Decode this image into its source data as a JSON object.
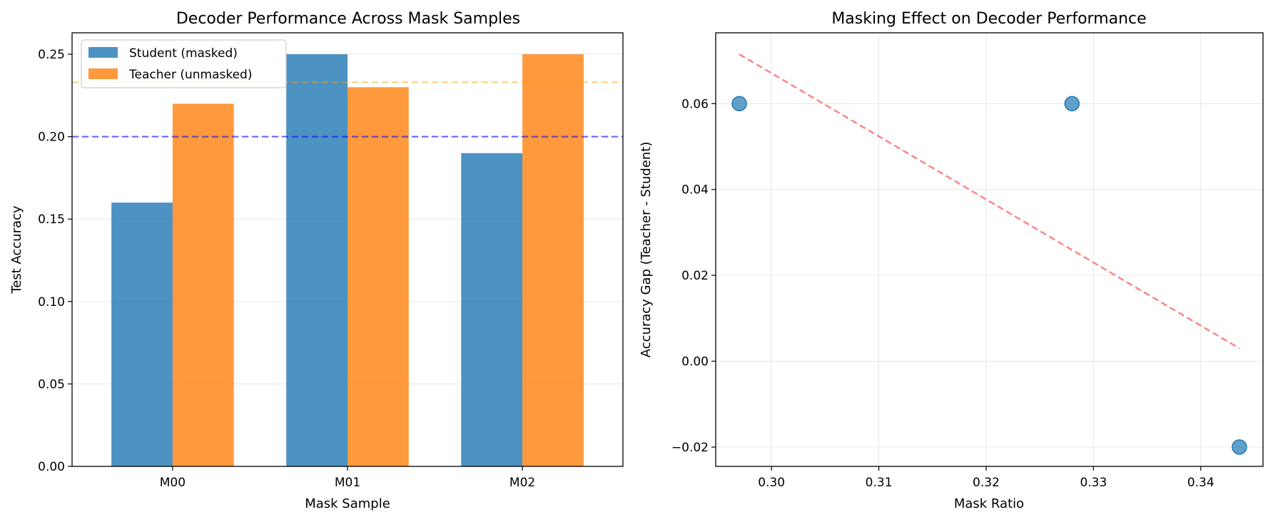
{
  "chart_data": [
    {
      "type": "bar",
      "title": "Decoder Performance Across Mask Samples",
      "xlabel": "Mask Sample",
      "ylabel": "Test Accuracy",
      "categories": [
        "M00",
        "M01",
        "M02"
      ],
      "series": [
        {
          "name": "Student (masked)",
          "values": [
            0.16,
            0.25,
            0.19
          ],
          "color": "#1f77b4"
        },
        {
          "name": "Teacher (unmasked)",
          "values": [
            0.22,
            0.23,
            0.25
          ],
          "color": "#ff7f0e"
        }
      ],
      "reference_lines": [
        {
          "y": 0.2,
          "color": "#0000ff",
          "style": "dashed"
        },
        {
          "y": 0.233,
          "color": "#ffa500",
          "style": "dashed"
        }
      ],
      "ylim": [
        0,
        0.263
      ],
      "yticks": [
        "0.00",
        "0.05",
        "0.10",
        "0.15",
        "0.20",
        "0.25"
      ],
      "ytick_values": [
        0,
        0.05,
        0.1,
        0.15,
        0.2,
        0.25
      ],
      "grid": true,
      "legend_position": "top-left"
    },
    {
      "type": "scatter",
      "title": "Masking Effect on Decoder Performance",
      "xlabel": "Mask Ratio",
      "ylabel": "Accuracy Gap (Teacher - Student)",
      "points": [
        {
          "x": 0.297,
          "y": 0.06
        },
        {
          "x": 0.328,
          "y": 0.06
        },
        {
          "x": 0.3436,
          "y": -0.02
        }
      ],
      "point_color": "#1f77b4",
      "trend_line": {
        "x": [
          0.297,
          0.3436
        ],
        "y": [
          0.0715,
          0.003
        ],
        "color": "#ff6b6b",
        "style": "dashed"
      },
      "xlim": [
        0.2948,
        0.3458
      ],
      "ylim": [
        -0.0245,
        0.0765
      ],
      "xticks": [
        "0.30",
        "0.31",
        "0.32",
        "0.33",
        "0.34"
      ],
      "xtick_values": [
        0.3,
        0.31,
        0.32,
        0.33,
        0.34
      ],
      "yticks": [
        "−0.02",
        "0.00",
        "0.02",
        "0.04",
        "0.06"
      ],
      "ytick_values": [
        -0.02,
        0,
        0.02,
        0.04,
        0.06
      ],
      "grid": true
    }
  ]
}
